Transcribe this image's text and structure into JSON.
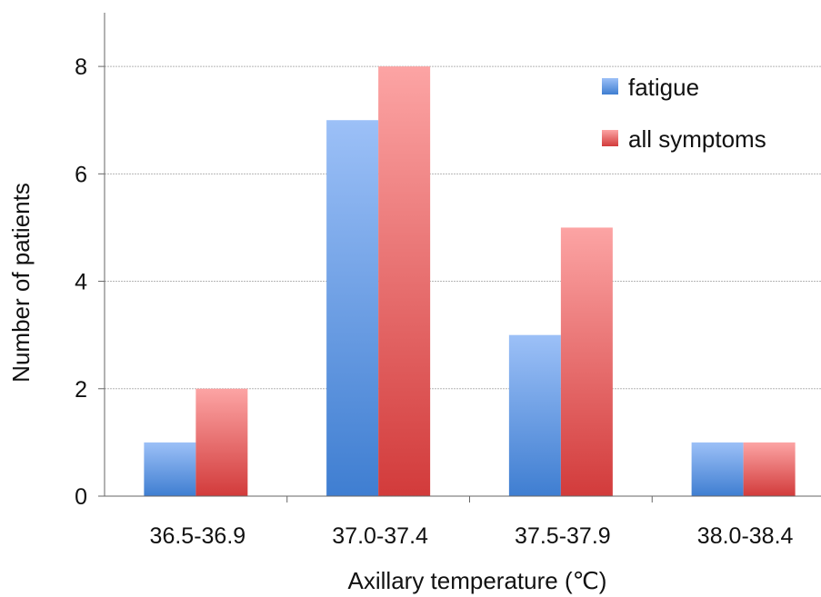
{
  "chart_data": {
    "type": "bar",
    "title": "",
    "xlabel": "Axillary temperature (℃)",
    "ylabel": "Number of patients",
    "categories": [
      "36.5-36.9",
      "37.0-37.4",
      "37.5-37.9",
      "38.0-38.4"
    ],
    "series": [
      {
        "name": "fatigue",
        "values": [
          1,
          7,
          3,
          1
        ],
        "color": "#6d9fe3"
      },
      {
        "name": "all symptoms",
        "values": [
          2,
          8,
          5,
          1
        ],
        "color": "#ee7474"
      }
    ],
    "ylim": [
      0,
      9
    ],
    "yticks": [
      0,
      2,
      4,
      6,
      8
    ],
    "grid": true,
    "legend": "top-right"
  }
}
